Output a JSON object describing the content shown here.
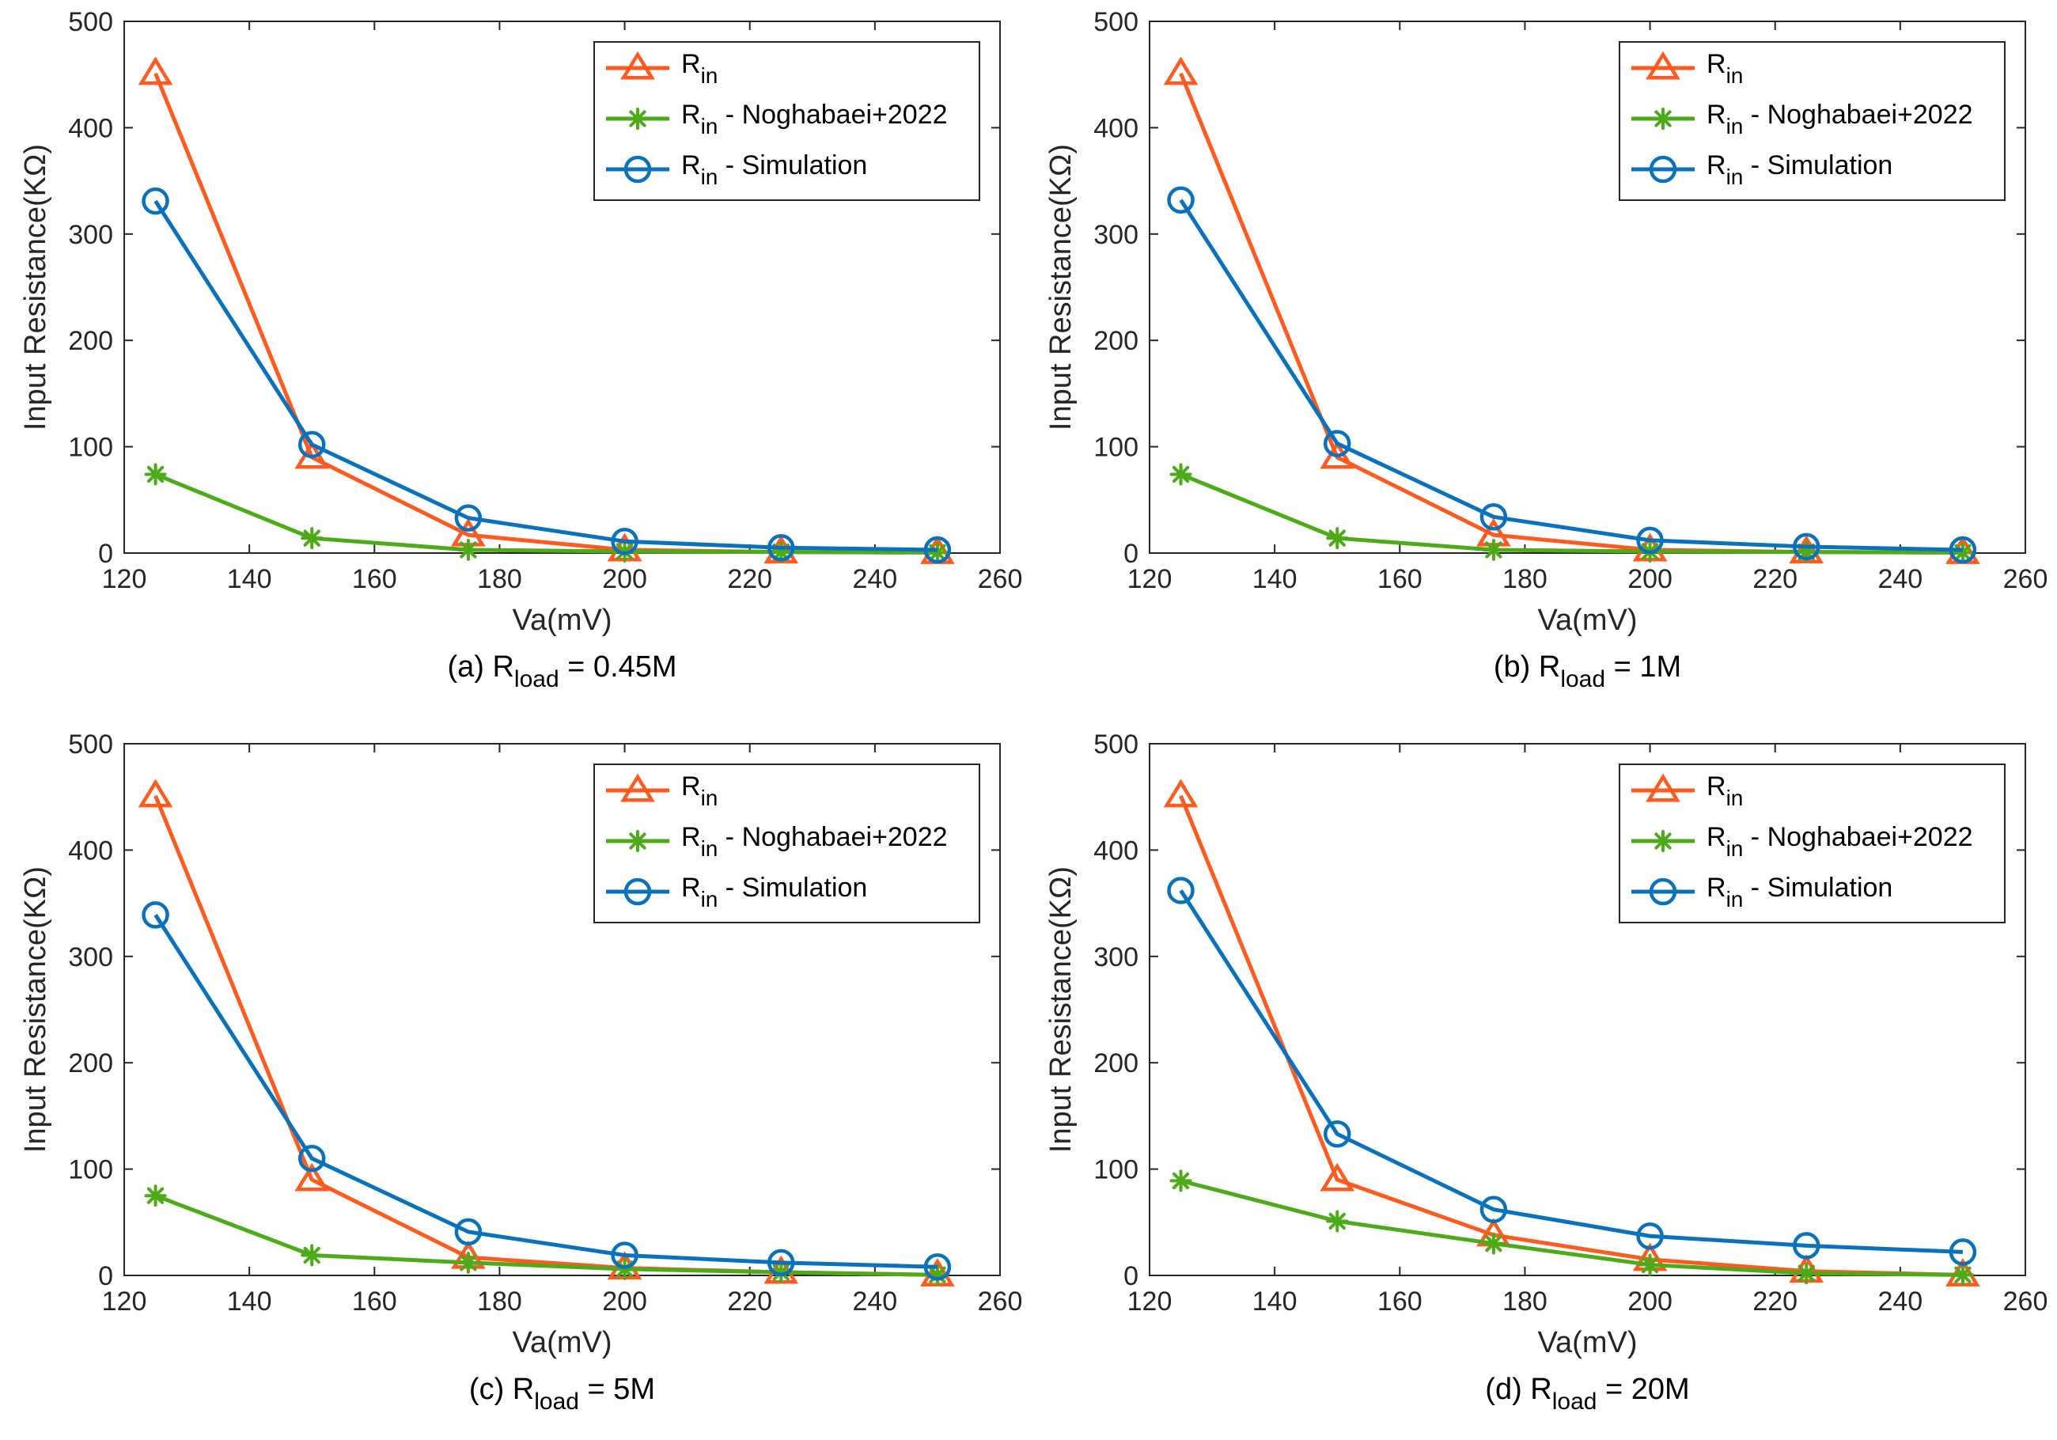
{
  "figure_note": "Four panels of input resistance versus Va",
  "colors": {
    "rin": "#FF5A1F",
    "noghabaei": "#4DAA19",
    "simulation": "#0A72BD",
    "axis": "#262626"
  },
  "chart_data": [
    {
      "type": "line",
      "panel": "a",
      "caption": {
        "prefix": "(a) R",
        "sub": "load",
        "suffix": " = 0.45M"
      },
      "xlabel": "Va(mV)",
      "ylabel": "Input Resistance(KΩ)",
      "xlim": [
        120,
        260
      ],
      "ylim": [
        0,
        500
      ],
      "xticks": [
        120,
        140,
        160,
        180,
        200,
        220,
        240,
        260
      ],
      "yticks": [
        0,
        100,
        200,
        300,
        400,
        500
      ],
      "legend_position": "top-right",
      "x": [
        125,
        150,
        175,
        200,
        225,
        250
      ],
      "series": [
        {
          "name": "R",
          "sub": "in",
          "suffix": "",
          "marker": "triangle",
          "color": "#FF5A1F",
          "values": [
            451,
            90,
            17,
            3,
            1,
            0.5
          ]
        },
        {
          "name": "R",
          "sub": "in",
          "suffix": " - Noghabaei+2022",
          "marker": "star",
          "color": "#4DAA19",
          "values": [
            74,
            14,
            3,
            1.5,
            1,
            0.5
          ]
        },
        {
          "name": "R",
          "sub": "in",
          "suffix": " - Simulation",
          "marker": "circle",
          "color": "#0A72BD",
          "values": [
            331,
            102,
            33,
            11,
            5,
            3
          ]
        }
      ]
    },
    {
      "type": "line",
      "panel": "b",
      "caption": {
        "prefix": "(b) R",
        "sub": "load",
        "suffix": " = 1M"
      },
      "xlabel": "Va(mV)",
      "ylabel": "Input Resistance(KΩ)",
      "xlim": [
        120,
        260
      ],
      "ylim": [
        0,
        500
      ],
      "xticks": [
        120,
        140,
        160,
        180,
        200,
        220,
        240,
        260
      ],
      "yticks": [
        0,
        100,
        200,
        300,
        400,
        500
      ],
      "legend_position": "top-right",
      "x": [
        125,
        150,
        175,
        200,
        225,
        250
      ],
      "series": [
        {
          "name": "R",
          "sub": "in",
          "suffix": "",
          "marker": "triangle",
          "color": "#FF5A1F",
          "values": [
            451,
            90,
            17,
            3,
            1,
            0.5
          ]
        },
        {
          "name": "R",
          "sub": "in",
          "suffix": " - Noghabaei+2022",
          "marker": "star",
          "color": "#4DAA19",
          "values": [
            74,
            14,
            3,
            1.5,
            1,
            0.5
          ]
        },
        {
          "name": "R",
          "sub": "in",
          "suffix": " - Simulation",
          "marker": "circle",
          "color": "#0A72BD",
          "values": [
            332,
            103,
            34,
            12,
            6,
            3
          ]
        }
      ]
    },
    {
      "type": "line",
      "panel": "c",
      "caption": {
        "prefix": "(c) R",
        "sub": "load",
        "suffix": " = 5M"
      },
      "xlabel": "Va(mV)",
      "ylabel": "Input Resistance(KΩ)",
      "xlim": [
        120,
        260
      ],
      "ylim": [
        0,
        500
      ],
      "xticks": [
        120,
        140,
        160,
        180,
        200,
        220,
        240,
        260
      ],
      "yticks": [
        0,
        100,
        200,
        300,
        400,
        500
      ],
      "legend_position": "top-right",
      "x": [
        125,
        150,
        175,
        200,
        225,
        250
      ],
      "series": [
        {
          "name": "R",
          "sub": "in",
          "suffix": "",
          "marker": "triangle",
          "color": "#FF5A1F",
          "values": [
            451,
            90,
            17,
            7,
            3,
            0.5
          ]
        },
        {
          "name": "R",
          "sub": "in",
          "suffix": " - Noghabaei+2022",
          "marker": "star",
          "color": "#4DAA19",
          "values": [
            75,
            19,
            12,
            6,
            3,
            0.5
          ]
        },
        {
          "name": "R",
          "sub": "in",
          "suffix": " - Simulation",
          "marker": "circle",
          "color": "#0A72BD",
          "values": [
            339,
            110,
            41,
            19,
            12,
            8
          ]
        }
      ]
    },
    {
      "type": "line",
      "panel": "d",
      "caption": {
        "prefix": "(d) R",
        "sub": "load",
        "suffix": " = 20M"
      },
      "xlabel": "Va(mV)",
      "ylabel": "Input Resistance(KΩ)",
      "xlim": [
        120,
        260
      ],
      "ylim": [
        0,
        500
      ],
      "xticks": [
        120,
        140,
        160,
        180,
        200,
        220,
        240,
        260
      ],
      "yticks": [
        0,
        100,
        200,
        300,
        400,
        500
      ],
      "legend_position": "top-right",
      "x": [
        125,
        150,
        175,
        200,
        225,
        250
      ],
      "series": [
        {
          "name": "R",
          "sub": "in",
          "suffix": "",
          "marker": "triangle",
          "color": "#FF5A1F",
          "values": [
            451,
            90,
            38,
            15,
            4,
            0.5
          ]
        },
        {
          "name": "R",
          "sub": "in",
          "suffix": " - Noghabaei+2022",
          "marker": "star",
          "color": "#4DAA19",
          "values": [
            89,
            51,
            30,
            10,
            2,
            0.5
          ]
        },
        {
          "name": "R",
          "sub": "in",
          "suffix": " - Simulation",
          "marker": "circle",
          "color": "#0A72BD",
          "values": [
            362,
            133,
            62,
            37,
            28,
            22
          ]
        }
      ]
    }
  ]
}
